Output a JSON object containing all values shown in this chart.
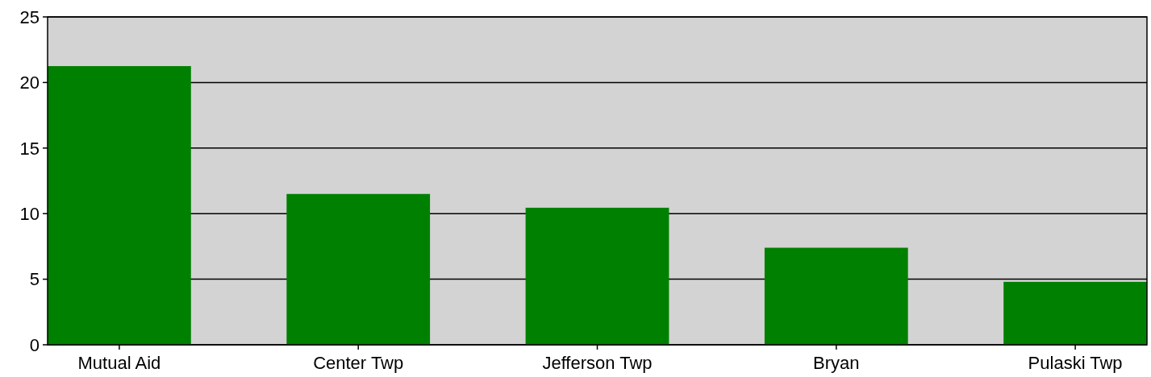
{
  "chart_data": {
    "type": "bar",
    "categories": [
      "Mutual Aid",
      "Center Twp",
      "Jefferson Twp",
      "Bryan",
      "Pulaski Twp"
    ],
    "values": [
      21.25,
      11.5,
      10.45,
      7.4,
      4.8
    ],
    "color": "#008000",
    "ylim": [
      0,
      25
    ],
    "yticks": [
      0,
      5,
      10,
      15,
      20,
      25
    ],
    "grid": "y"
  }
}
